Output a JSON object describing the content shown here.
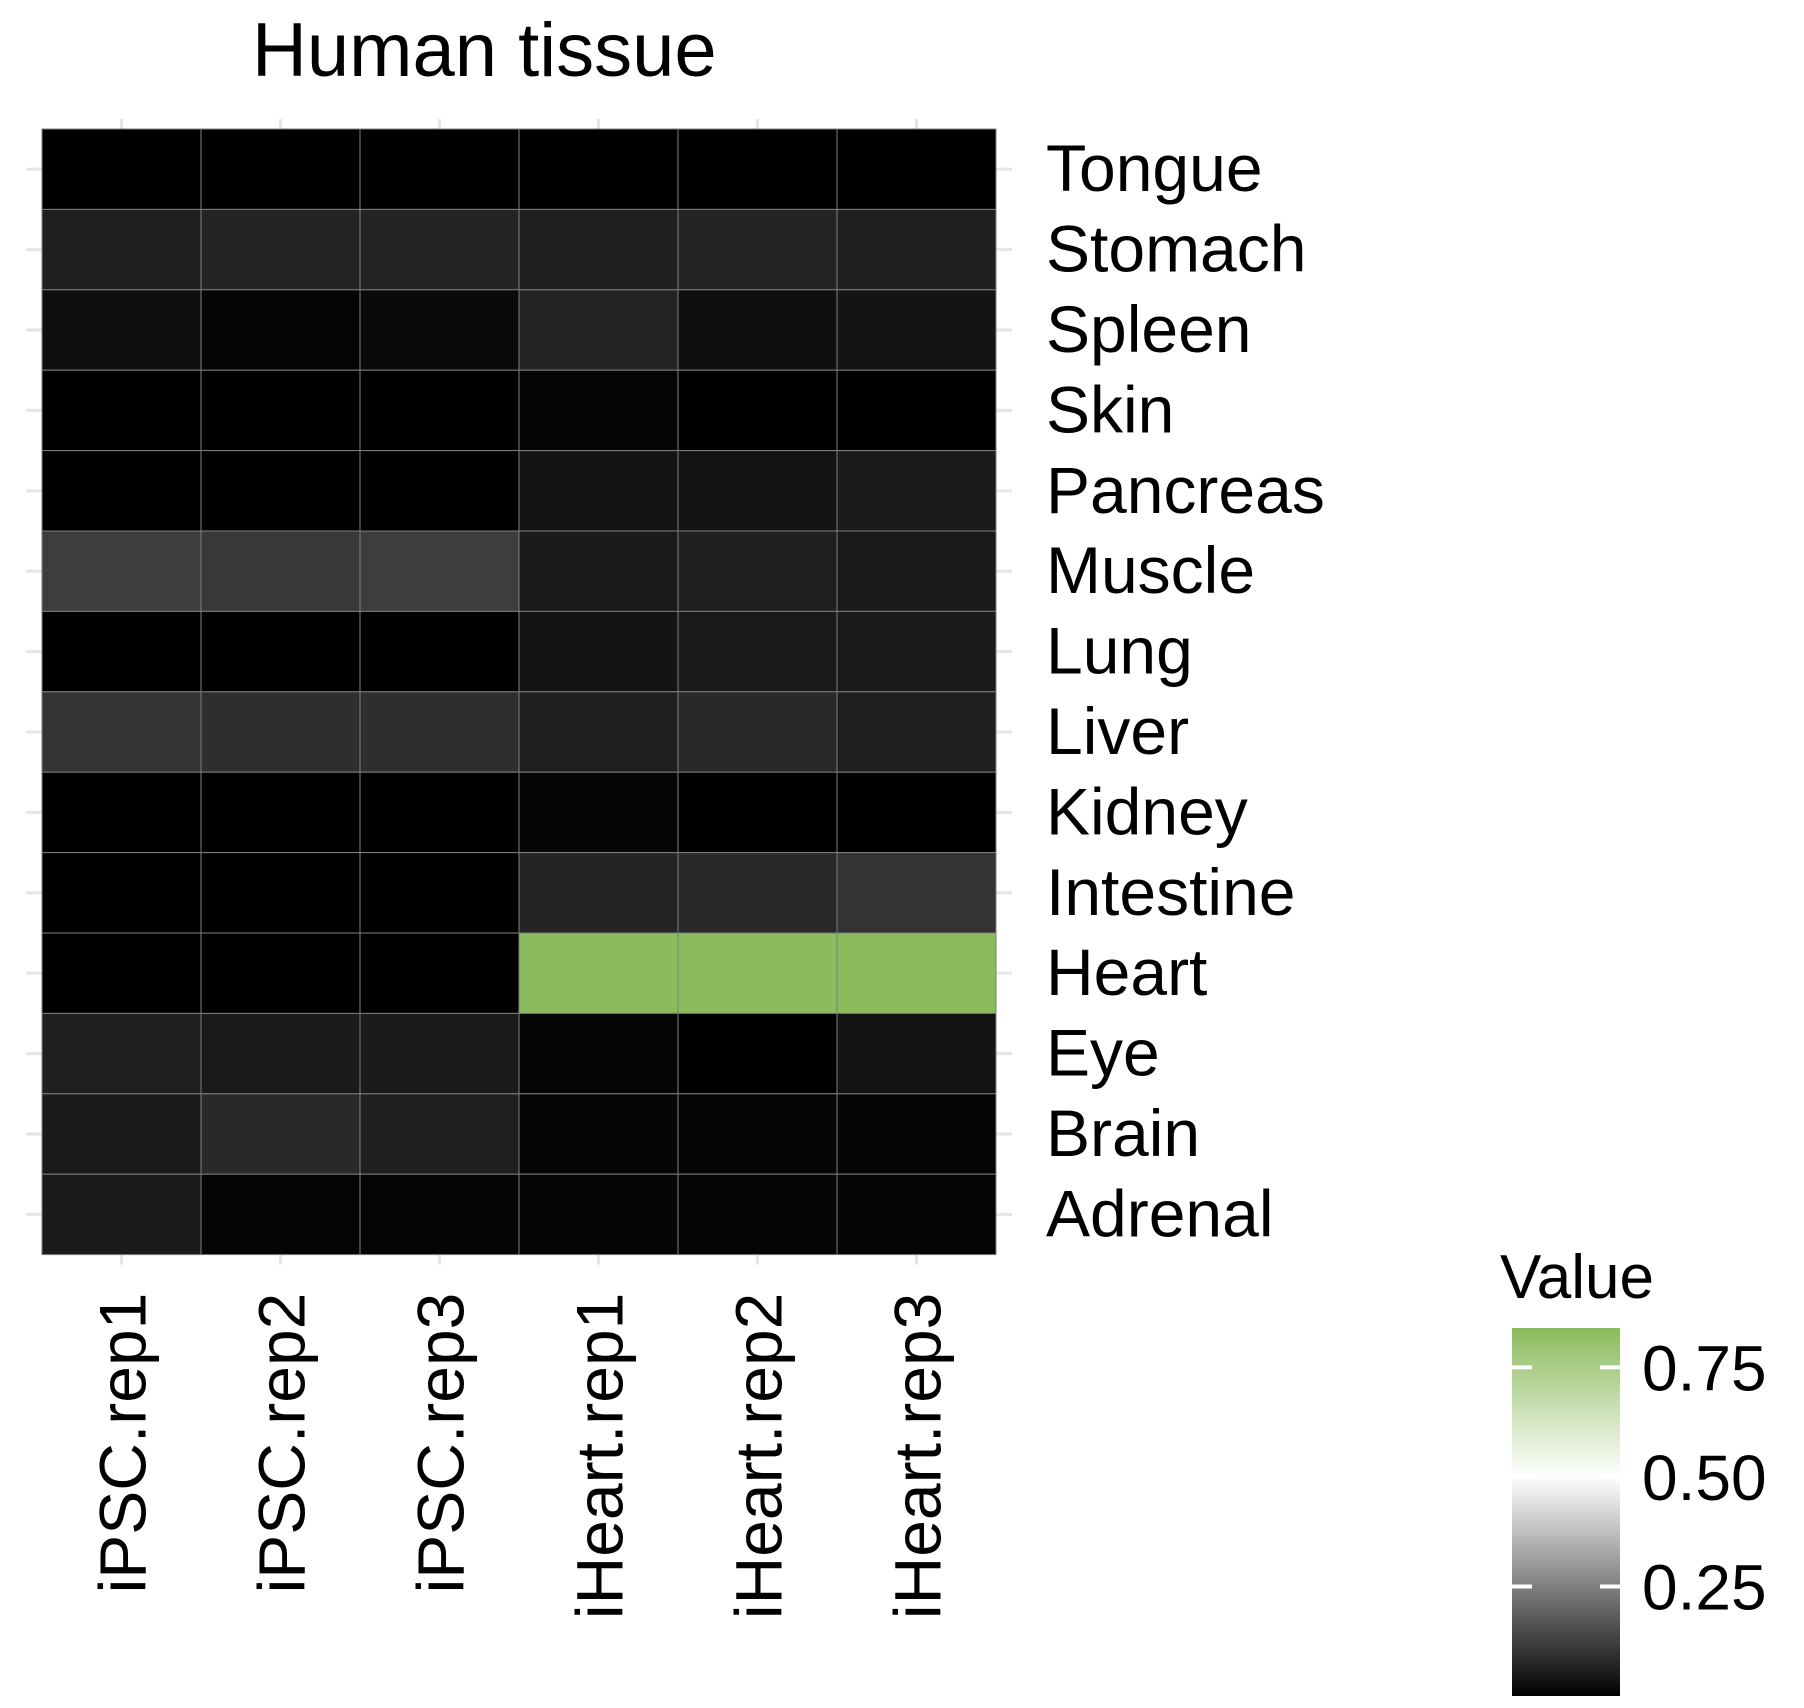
{
  "chart_data": {
    "type": "heatmap",
    "title": "Human tissue",
    "xlabel": "",
    "ylabel": "",
    "columns": [
      "iPSC.rep1",
      "iPSC.rep2",
      "iPSC.rep3",
      "iHeart.rep1",
      "iHeart.rep2",
      "iHeart.rep3"
    ],
    "rows": [
      "Tongue",
      "Stomach",
      "Spleen",
      "Skin",
      "Pancreas",
      "Muscle",
      "Lung",
      "Liver",
      "Kidney",
      "Intestine",
      "Heart",
      "Eye",
      "Brain",
      "Adrenal"
    ],
    "values": [
      [
        0.0,
        0.0,
        0.0,
        0.0,
        0.0,
        0.0
      ],
      [
        0.06,
        0.07,
        0.07,
        0.06,
        0.07,
        0.06
      ],
      [
        0.03,
        0.01,
        0.02,
        0.07,
        0.03,
        0.04
      ],
      [
        0.0,
        0.0,
        0.0,
        0.01,
        0.0,
        0.0
      ],
      [
        0.0,
        0.0,
        0.0,
        0.04,
        0.04,
        0.05
      ],
      [
        0.12,
        0.11,
        0.12,
        0.05,
        0.06,
        0.05
      ],
      [
        0.0,
        0.0,
        0.0,
        0.04,
        0.05,
        0.05
      ],
      [
        0.1,
        0.09,
        0.09,
        0.06,
        0.08,
        0.06
      ],
      [
        0.0,
        0.0,
        0.0,
        0.01,
        0.0,
        0.0
      ],
      [
        0.0,
        0.0,
        0.0,
        0.07,
        0.08,
        0.1
      ],
      [
        0.0,
        0.0,
        0.0,
        0.84,
        0.84,
        0.84
      ],
      [
        0.06,
        0.05,
        0.05,
        0.01,
        0.0,
        0.04
      ],
      [
        0.05,
        0.08,
        0.06,
        0.01,
        0.01,
        0.01
      ],
      [
        0.05,
        0.01,
        0.01,
        0.01,
        0.01,
        0.01
      ]
    ],
    "legend": {
      "title": "Value",
      "ticks": [
        0.25,
        0.5,
        0.75
      ],
      "tick_labels": [
        "0.25",
        "0.50",
        "0.75"
      ],
      "range": [
        0.0,
        0.84
      ],
      "placement": "bottom-right"
    },
    "colors": {
      "low": "#000000",
      "mid": "#ffffff",
      "high": "#8bbb5d",
      "cell_border": "#7f7f7f",
      "tick_color": "#e6e6e6"
    }
  }
}
